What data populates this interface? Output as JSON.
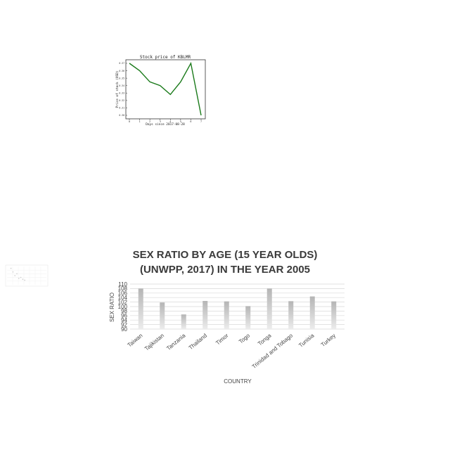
{
  "chart_data": [
    {
      "type": "line",
      "title": "Stock price of KBLMR",
      "xlabel": "Days since 2017-08-28",
      "ylabel": "Price of stock (USD)",
      "x": [
        0,
        1,
        2,
        3,
        4,
        5,
        6,
        7
      ],
      "y": [
        0.37,
        0.36,
        0.345,
        0.34,
        0.328,
        0.345,
        0.37,
        0.3
      ],
      "yticks": [
        "0.30",
        "0.31",
        "0.32",
        "0.33",
        "0.34",
        "0.35",
        "0.36",
        "0.37"
      ],
      "xlim": [
        0,
        7
      ],
      "ylim": [
        0.3,
        0.37
      ],
      "color": "#1a7a1a",
      "grid": false
    },
    {
      "type": "scatter",
      "note_small_thumbnail": "",
      "x": [
        0.1,
        0.15,
        0.2,
        0.25,
        0.3,
        0.35,
        0.4,
        0.45
      ],
      "y": [
        0.9,
        0.7,
        0.5,
        0.6,
        0.35,
        0.4,
        0.3,
        0.25
      ],
      "grid": true,
      "color": "#b0b0b0"
    },
    {
      "type": "bar",
      "title": "SEX RATIO BY AGE (15 YEAR OLDS) (UNWPP, 2017) IN THE YEAR 2005",
      "title_lines": [
        "SEX RATIO BY AGE (15 YEAR OLDS)",
        "(UNWPP, 2017) IN THE YEAR 2005"
      ],
      "xlabel": "COUNTRY",
      "ylabel": "SEX RATIO",
      "categories": [
        "Taiwan",
        "Tajikistan",
        "Tanzania",
        "Thailand",
        "Timor",
        "Togo",
        "Tonga",
        "Trinidad and Tobago",
        "Tunisia",
        "Turkey"
      ],
      "values": [
        108,
        101.8,
        96.5,
        102.5,
        102.3,
        100.2,
        108,
        102.4,
        104.5,
        102.3
      ],
      "yticks": [
        "90",
        "92",
        "94",
        "96",
        "98",
        "100",
        "102",
        "104",
        "106",
        "108",
        "110"
      ],
      "ylim": [
        90,
        110
      ],
      "bar_color": "#b5b5b5",
      "grid": true
    }
  ]
}
